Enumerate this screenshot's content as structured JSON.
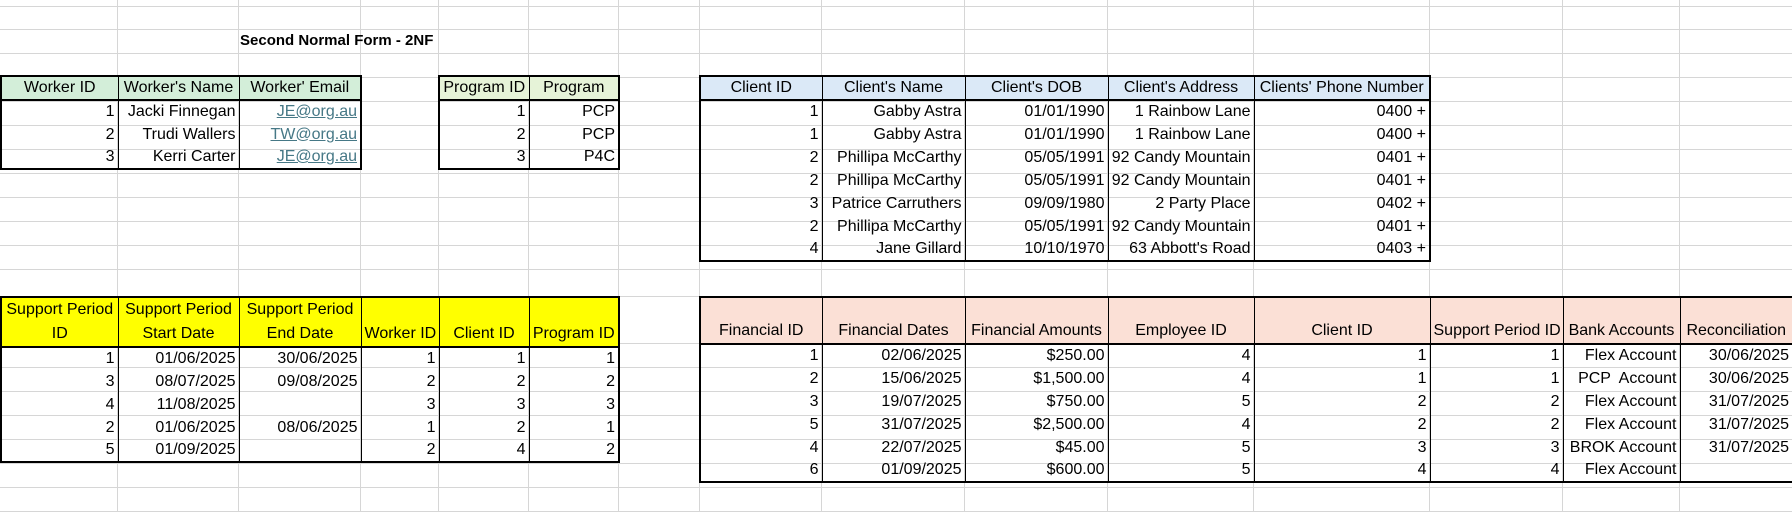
{
  "title": "Second Normal Form - 2NF",
  "workers": {
    "headers": [
      "Worker ID",
      "Worker's Name",
      "Worker' Email"
    ],
    "rows": [
      [
        "1",
        "Jacki Finnegan",
        "JE@org.au"
      ],
      [
        "2",
        "Trudi Wallers",
        "TW@org.au"
      ],
      [
        "3",
        "Kerri Carter",
        "JE@org.au"
      ]
    ]
  },
  "programs": {
    "headers": [
      "Program ID",
      "Program"
    ],
    "rows": [
      [
        "1",
        "PCP"
      ],
      [
        "2",
        "PCP"
      ],
      [
        "3",
        "P4C"
      ]
    ]
  },
  "clients": {
    "headers": [
      "Client ID",
      "Client's Name",
      "Client's DOB",
      "Client's Address",
      "Clients' Phone Number"
    ],
    "rows": [
      [
        "1",
        "Gabby Astra",
        "01/01/1990",
        "1 Rainbow Lane",
        "0400 +"
      ],
      [
        "1",
        "Gabby Astra",
        "01/01/1990",
        "1 Rainbow Lane",
        "0400 +"
      ],
      [
        "2",
        "Phillipa McCarthy",
        "05/05/1991",
        "92 Candy Mountain",
        "0401 +"
      ],
      [
        "2",
        "Phillipa McCarthy",
        "05/05/1991",
        "92 Candy Mountain",
        "0401 +"
      ],
      [
        "3",
        "Patrice Carruthers",
        "09/09/1980",
        "2 Party Place",
        "0402 +"
      ],
      [
        "2",
        "Phillipa McCarthy",
        "05/05/1991",
        "92 Candy Mountain",
        "0401 +"
      ],
      [
        "4",
        "Jane Gillard",
        "10/10/1970",
        "63 Abbott's Road",
        "0403 +"
      ]
    ]
  },
  "support_periods": {
    "headers": [
      [
        "Support Period",
        "ID"
      ],
      [
        "Support Period",
        "Start Date"
      ],
      [
        "Support Period",
        "End Date"
      ],
      [
        "",
        "Worker ID"
      ],
      [
        "",
        "Client ID"
      ],
      [
        "",
        "Program ID"
      ]
    ],
    "rows": [
      [
        "1",
        "01/06/2025",
        "30/06/2025",
        "1",
        "1",
        "1"
      ],
      [
        "3",
        "08/07/2025",
        "09/08/2025",
        "2",
        "2",
        "2"
      ],
      [
        "4",
        "11/08/2025",
        "",
        "3",
        "3",
        "3"
      ],
      [
        "2",
        "01/06/2025",
        "08/06/2025",
        "1",
        "2",
        "1"
      ],
      [
        "5",
        "01/09/2025",
        "",
        "2",
        "4",
        "2"
      ]
    ]
  },
  "financial": {
    "headers": [
      "Financial ID",
      "Financial Dates",
      "Financial Amounts",
      "Employee ID",
      "Client ID",
      "Support Period ID",
      "Bank Accounts",
      "Reconciliation"
    ],
    "rows": [
      [
        "1",
        "02/06/2025",
        "$250.00",
        "4",
        "1",
        "1",
        "Flex Account",
        "30/06/2025"
      ],
      [
        "2",
        "15/06/2025",
        "$1,500.00",
        "4",
        "1",
        "1",
        "PCP  Account",
        "30/06/2025"
      ],
      [
        "3",
        "19/07/2025",
        "$750.00",
        "5",
        "2",
        "2",
        "Flex Account",
        "31/07/2025"
      ],
      [
        "5",
        "31/07/2025",
        "$2,500.00",
        "4",
        "2",
        "2",
        "Flex Account",
        "31/07/2025"
      ],
      [
        "4",
        "22/07/2025",
        "$45.00",
        "5",
        "3",
        "3",
        "BROK Account",
        "31/07/2025"
      ],
      [
        "6",
        "01/09/2025",
        "$600.00",
        "5",
        "4",
        "4",
        "Flex Account",
        ""
      ]
    ]
  },
  "colors": {
    "workers_header": "#d3eed9",
    "programs_header": "#e6f3d8",
    "clients_header": "#dbe9f7",
    "support_header": "#ffff00",
    "financial_header": "#fbe0d6",
    "hyperlink": "#467886"
  }
}
